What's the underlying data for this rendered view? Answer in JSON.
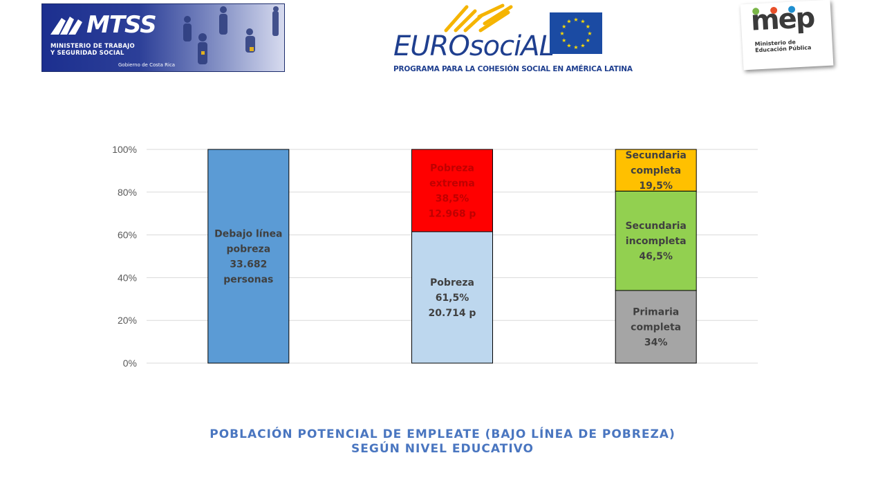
{
  "logos": {
    "mtss": {
      "name": "MTSS",
      "line1": "MINISTERIO DE TRABAJO",
      "line2": "Y SEGURIDAD SOCIAL",
      "gov": "Gobierno de Costa Rica"
    },
    "eurosocial": {
      "name": "EUROsociAL",
      "subtitle": "PROGRAMA PARA LA COHESIÓN SOCIAL EN AMÉRICA LATINA"
    },
    "mep": {
      "name": "mep",
      "line1": "Ministerio de",
      "line2": "Educación Pública"
    }
  },
  "caption": {
    "line1": "POBLACIÓN POTENCIAL DE EMPLEATE (BAJO LÍNEA DE POBREZA)",
    "line2": "SEGÚN NIVEL EDUCATIVO"
  },
  "chart_data": {
    "type": "bar",
    "stacked": true,
    "percent": true,
    "ylim": [
      0,
      100
    ],
    "yticks": [
      "0%",
      "20%",
      "40%",
      "60%",
      "80%",
      "100%"
    ],
    "grid": true,
    "bars": [
      {
        "segments": [
          {
            "value": 100,
            "color": "#5b9bd5",
            "label": [
              "Debajo línea",
              "pobreza",
              "33.682",
              "personas"
            ]
          }
        ]
      },
      {
        "segments": [
          {
            "value": 61.5,
            "color": "#bdd7ee",
            "label": [
              "Pobreza",
              "61,5%",
              "20.714 p"
            ]
          },
          {
            "value": 38.5,
            "color": "#ff0000",
            "label": [
              "Pobreza",
              "extrema",
              "38,5%",
              "12.968 p"
            ]
          }
        ]
      },
      {
        "segments": [
          {
            "value": 34,
            "color": "#a5a5a5",
            "label": [
              "Primaria",
              "completa",
              "34%"
            ]
          },
          {
            "value": 46.5,
            "color": "#92d050",
            "label": [
              "Secundaria",
              "incompleta",
              "46,5%"
            ]
          },
          {
            "value": 19.5,
            "color": "#ffc000",
            "label": [
              "Secundaria",
              "completa",
              "19,5%"
            ]
          }
        ]
      }
    ]
  }
}
